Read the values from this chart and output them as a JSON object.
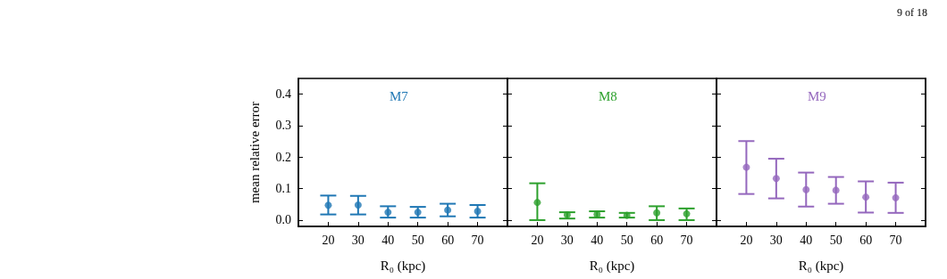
{
  "chart_data": [
    {
      "type": "scatter",
      "xlabel": "R₀ (kpc)",
      "ylabel": "mean relative error",
      "x": [
        20,
        30,
        40,
        50,
        60,
        70
      ],
      "xlim": [
        10,
        80
      ],
      "xticks": [
        20,
        30,
        40,
        50,
        60,
        70
      ],
      "ylim": [
        -0.02,
        0.45
      ],
      "yticks": [
        {
          "value": 0,
          "label": "0.0"
        },
        0.1,
        0.2,
        0.3,
        0.4
      ],
      "marker": "circle",
      "series": [
        {
          "name": "M7",
          "color": "#1f77b4",
          "values": [
            0.047,
            0.048,
            0.025,
            0.025,
            0.032,
            0.028
          ],
          "errors": [
            [
              0.018,
              0.078
            ],
            [
              0.018,
              0.077
            ],
            [
              0.008,
              0.044
            ],
            [
              0.008,
              0.042
            ],
            [
              0.012,
              0.052
            ],
            [
              0.008,
              0.048
            ]
          ]
        }
      ]
    },
    {
      "type": "scatter",
      "xlabel": "R₀ (kpc)",
      "x": [
        20,
        30,
        40,
        50,
        60,
        70
      ],
      "xlim": [
        10,
        80
      ],
      "xticks": [
        20,
        30,
        40,
        50,
        60,
        70
      ],
      "ylim": [
        -0.02,
        0.45
      ],
      "yticks": [
        0,
        0.1,
        0.2,
        0.3,
        0.4
      ],
      "tick_labels": "x",
      "marker": "circle",
      "series": [
        {
          "name": "M8",
          "color": "#2ca02c",
          "values": [
            0.056,
            0.017,
            0.018,
            0.015,
            0.023,
            0.02
          ],
          "errors": [
            [
              0.0,
              0.117
            ],
            [
              0.005,
              0.025
            ],
            [
              0.008,
              0.028
            ],
            [
              0.008,
              0.023
            ],
            [
              0.0,
              0.044
            ],
            [
              0.0,
              0.037
            ]
          ]
        }
      ]
    },
    {
      "type": "scatter",
      "xlabel": "R₀ (kpc)",
      "x": [
        20,
        30,
        40,
        50,
        60,
        70
      ],
      "xlim": [
        10,
        80
      ],
      "xticks": [
        20,
        30,
        40,
        50,
        60,
        70
      ],
      "ylim": [
        -0.02,
        0.45
      ],
      "yticks": [
        0,
        0.1,
        0.2,
        0.3,
        0.4
      ],
      "tick_labels": "x",
      "marker": "circle",
      "annotations": [
        "9 of 18"
      ],
      "series": [
        {
          "name": "M9",
          "color": "#9467bd",
          "values": [
            0.168,
            0.132,
            0.097,
            0.095,
            0.073,
            0.071
          ],
          "errors": [
            [
              0.083,
              0.251
            ],
            [
              0.069,
              0.195
            ],
            [
              0.043,
              0.151
            ],
            [
              0.052,
              0.137
            ],
            [
              0.024,
              0.123
            ],
            [
              0.023,
              0.119
            ]
          ]
        }
      ]
    }
  ]
}
